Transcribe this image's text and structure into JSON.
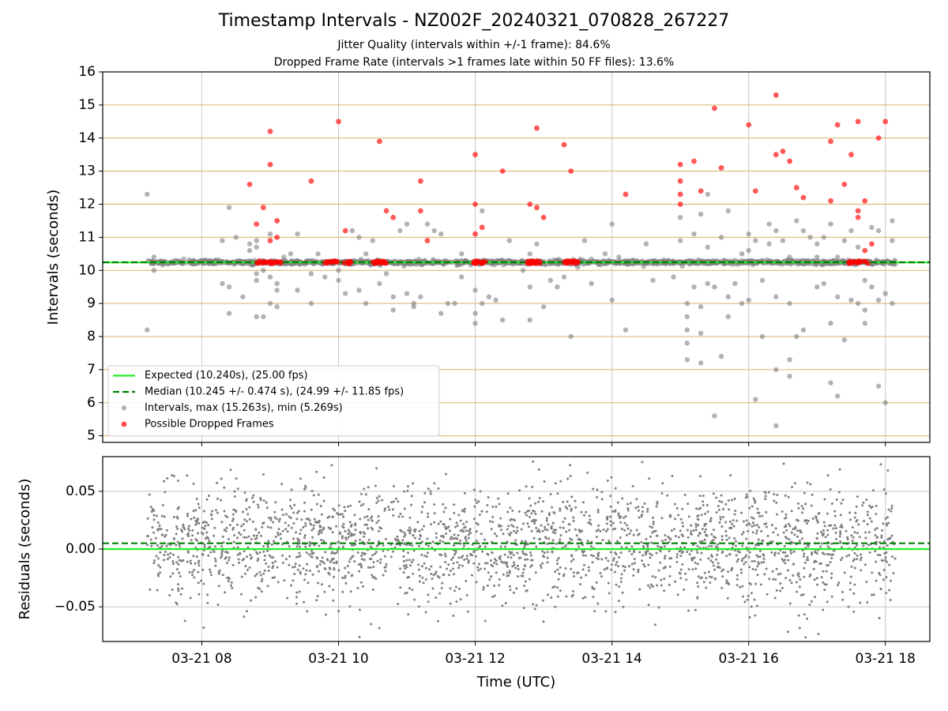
{
  "title": "Timestamp Intervals - NZ002F_20240321_070828_267227",
  "subtitles": [
    "Jitter Quality (intervals within +/-1 frame): 84.6%",
    "Dropped Frame Rate (intervals >1 frames late within 50 FF files): 13.6%"
  ],
  "colors": {
    "expected": "#22ee22",
    "median": "#008000",
    "intervals": "#808080",
    "dropped": "#ff0000",
    "hgrid_top": "#d4b36a",
    "grid": "#c8c8c8"
  },
  "chart_data": [
    {
      "type": "scatter",
      "ylabel": "Intervals (seconds)",
      "ylim": [
        4.8,
        16
      ],
      "yticks": [
        5,
        6,
        7,
        8,
        9,
        10,
        11,
        12,
        13,
        14,
        15,
        16
      ],
      "xlim_hours": [
        6.55,
        18.65
      ],
      "expected": 10.24,
      "median": 10.245,
      "grid": true,
      "legend_placement": "lower-left",
      "legend": [
        "Expected (10.240s), (25.00 fps)",
        "Median (10.245 +/- 0.474 s), (24.99 +/- 11.85 fps)",
        "Intervals, max (15.263s), min (5.269s)",
        "Possible Dropped Frames"
      ],
      "series": [
        {
          "name": "Intervals, max (15.263s), min (5.269s)",
          "points": [
            [
              7.2,
              12.3
            ],
            [
              7.2,
              8.2
            ],
            [
              7.3,
              10.0
            ],
            [
              7.3,
              10.4
            ],
            [
              8.3,
              10.9
            ],
            [
              8.3,
              9.6
            ],
            [
              8.4,
              11.9
            ],
            [
              8.4,
              9.5
            ],
            [
              8.4,
              8.7
            ],
            [
              8.5,
              11.0
            ],
            [
              8.6,
              9.2
            ],
            [
              8.6,
              10.2
            ],
            [
              8.7,
              10.6
            ],
            [
              8.7,
              10.8
            ],
            [
              8.8,
              9.7
            ],
            [
              8.8,
              9.9
            ],
            [
              8.8,
              10.7
            ],
            [
              8.8,
              10.9
            ],
            [
              8.9,
              8.6
            ],
            [
              8.9,
              10.0
            ],
            [
              8.9,
              10.3
            ],
            [
              9.0,
              9.0
            ],
            [
              9.0,
              9.8
            ],
            [
              9.0,
              11.1
            ],
            [
              9.1,
              9.6
            ],
            [
              9.1,
              9.4
            ],
            [
              9.2,
              10.4
            ],
            [
              9.3,
              10.5
            ],
            [
              9.4,
              11.1
            ],
            [
              9.4,
              9.4
            ],
            [
              9.6,
              9.9
            ],
            [
              9.6,
              9.0
            ],
            [
              9.7,
              10.5
            ],
            [
              9.8,
              9.8
            ],
            [
              10.0,
              10.0
            ],
            [
              10.0,
              9.7
            ],
            [
              10.1,
              9.3
            ],
            [
              10.2,
              11.2
            ],
            [
              10.3,
              11.0
            ],
            [
              10.3,
              9.4
            ],
            [
              10.4,
              9.0
            ],
            [
              10.5,
              10.9
            ],
            [
              10.6,
              10.3
            ],
            [
              10.6,
              9.6
            ],
            [
              10.7,
              9.9
            ],
            [
              10.8,
              8.8
            ],
            [
              10.8,
              9.2
            ],
            [
              10.9,
              11.2
            ],
            [
              11.0,
              11.4
            ],
            [
              11.0,
              9.3
            ],
            [
              11.1,
              9.0
            ],
            [
              11.1,
              8.9
            ],
            [
              11.2,
              9.2
            ],
            [
              11.3,
              11.4
            ],
            [
              11.4,
              11.2
            ],
            [
              11.5,
              8.7
            ],
            [
              11.5,
              11.1
            ],
            [
              11.7,
              9.0
            ],
            [
              11.8,
              9.8
            ],
            [
              11.8,
              10.5
            ],
            [
              12.0,
              9.4
            ],
            [
              12.0,
              8.7
            ],
            [
              12.0,
              8.4
            ],
            [
              12.1,
              9.0
            ],
            [
              12.1,
              11.8
            ],
            [
              12.2,
              9.2
            ],
            [
              12.3,
              9.1
            ],
            [
              12.4,
              8.5
            ],
            [
              12.5,
              10.9
            ],
            [
              12.7,
              10.0
            ],
            [
              12.8,
              9.5
            ],
            [
              12.8,
              8.5
            ],
            [
              12.9,
              10.8
            ],
            [
              13.0,
              8.9
            ],
            [
              13.1,
              9.7
            ],
            [
              13.3,
              9.8
            ],
            [
              13.4,
              8.0
            ],
            [
              13.5,
              10.1
            ],
            [
              13.6,
              10.9
            ],
            [
              13.7,
              9.6
            ],
            [
              13.9,
              10.5
            ],
            [
              14.0,
              11.4
            ],
            [
              14.0,
              9.1
            ],
            [
              14.2,
              8.2
            ],
            [
              14.3,
              10.3
            ],
            [
              14.5,
              10.8
            ],
            [
              14.6,
              9.7
            ],
            [
              14.9,
              9.8
            ],
            [
              15.0,
              10.9
            ],
            [
              15.0,
              11.6
            ],
            [
              15.1,
              9.0
            ],
            [
              15.1,
              8.6
            ],
            [
              15.1,
              8.2
            ],
            [
              15.1,
              7.8
            ],
            [
              15.1,
              7.3
            ],
            [
              15.2,
              9.5
            ],
            [
              15.2,
              11.1
            ],
            [
              15.3,
              11.7
            ],
            [
              15.3,
              8.9
            ],
            [
              15.3,
              8.1
            ],
            [
              15.4,
              9.6
            ],
            [
              15.4,
              12.3
            ],
            [
              15.4,
              10.7
            ],
            [
              15.5,
              9.5
            ],
            [
              15.6,
              11.0
            ],
            [
              15.6,
              7.4
            ],
            [
              15.7,
              11.8
            ],
            [
              15.7,
              9.2
            ],
            [
              15.7,
              8.6
            ],
            [
              15.8,
              9.6
            ],
            [
              15.9,
              9.0
            ],
            [
              15.9,
              10.5
            ],
            [
              16.0,
              10.6
            ],
            [
              16.0,
              11.1
            ],
            [
              16.0,
              9.1
            ],
            [
              16.1,
              6.1
            ],
            [
              16.1,
              10.9
            ],
            [
              16.2,
              8.0
            ],
            [
              16.2,
              9.7
            ],
            [
              16.3,
              11.4
            ],
            [
              16.3,
              10.8
            ],
            [
              16.4,
              9.2
            ],
            [
              16.4,
              11.2
            ],
            [
              16.4,
              7.0
            ],
            [
              16.5,
              10.9
            ],
            [
              16.6,
              10.4
            ],
            [
              16.6,
              6.8
            ],
            [
              16.6,
              9.0
            ],
            [
              16.7,
              8.0
            ],
            [
              16.7,
              11.5
            ],
            [
              16.8,
              11.2
            ],
            [
              16.8,
              8.2
            ],
            [
              16.9,
              11.0
            ],
            [
              17.0,
              9.5
            ],
            [
              17.0,
              10.8
            ],
            [
              17.1,
              9.6
            ],
            [
              17.1,
              11.0
            ],
            [
              17.2,
              6.6
            ],
            [
              17.2,
              11.4
            ],
            [
              17.2,
              8.4
            ],
            [
              17.3,
              6.2
            ],
            [
              17.3,
              9.2
            ],
            [
              17.4,
              10.9
            ],
            [
              17.4,
              7.9
            ],
            [
              17.5,
              9.1
            ],
            [
              17.5,
              11.2
            ],
            [
              17.6,
              10.7
            ],
            [
              17.6,
              9.0
            ],
            [
              17.7,
              8.8
            ],
            [
              17.7,
              8.4
            ],
            [
              17.7,
              9.7
            ],
            [
              17.8,
              11.3
            ],
            [
              17.8,
              9.5
            ],
            [
              17.9,
              6.5
            ],
            [
              17.9,
              9.1
            ],
            [
              17.9,
              11.2
            ],
            [
              18.0,
              6.0
            ],
            [
              18.0,
              9.3
            ],
            [
              18.1,
              11.5
            ],
            [
              18.1,
              9.0
            ],
            [
              18.1,
              10.9
            ],
            [
              15.5,
              5.6
            ],
            [
              16.4,
              5.3
            ],
            [
              15.3,
              7.2
            ],
            [
              16.6,
              7.3
            ],
            [
              9.1,
              8.9
            ],
            [
              8.8,
              8.6
            ],
            [
              12.8,
              10.5
            ],
            [
              14.1,
              10.4
            ],
            [
              10.4,
              10.5
            ],
            [
              11.6,
              9.0
            ],
            [
              13.2,
              9.5
            ],
            [
              17.0,
              10.4
            ],
            [
              16.2,
              10.3
            ],
            [
              15.8,
              10.3
            ],
            [
              17.3,
              10.4
            ]
          ]
        },
        {
          "name": "Possible Dropped Frames",
          "points": [
            [
              8.7,
              12.6
            ],
            [
              8.8,
              11.4
            ],
            [
              8.9,
              11.9
            ],
            [
              9.0,
              13.2
            ],
            [
              9.0,
              14.2
            ],
            [
              9.1,
              11.5
            ],
            [
              9.1,
              11.0
            ],
            [
              9.0,
              10.9
            ],
            [
              9.6,
              12.7
            ],
            [
              10.0,
              14.5
            ],
            [
              10.1,
              11.2
            ],
            [
              10.6,
              13.9
            ],
            [
              10.7,
              11.8
            ],
            [
              10.8,
              11.6
            ],
            [
              11.2,
              12.7
            ],
            [
              11.2,
              11.8
            ],
            [
              11.3,
              10.9
            ],
            [
              12.0,
              13.5
            ],
            [
              12.0,
              12.0
            ],
            [
              12.0,
              11.1
            ],
            [
              12.1,
              11.3
            ],
            [
              12.4,
              13.0
            ],
            [
              12.8,
              12.0
            ],
            [
              12.9,
              14.3
            ],
            [
              12.9,
              11.9
            ],
            [
              13.0,
              11.6
            ],
            [
              13.3,
              13.8
            ],
            [
              13.4,
              13.0
            ],
            [
              14.2,
              12.3
            ],
            [
              15.0,
              13.2
            ],
            [
              15.0,
              12.7
            ],
            [
              15.0,
              12.3
            ],
            [
              15.0,
              12.0
            ],
            [
              15.2,
              13.3
            ],
            [
              15.3,
              12.4
            ],
            [
              15.5,
              14.9
            ],
            [
              15.6,
              13.1
            ],
            [
              16.0,
              14.4
            ],
            [
              16.1,
              12.4
            ],
            [
              16.4,
              15.3
            ],
            [
              16.4,
              13.5
            ],
            [
              16.5,
              13.6
            ],
            [
              16.6,
              13.3
            ],
            [
              16.7,
              12.5
            ],
            [
              16.8,
              12.2
            ],
            [
              17.2,
              13.9
            ],
            [
              17.2,
              12.1
            ],
            [
              17.3,
              14.4
            ],
            [
              17.4,
              12.6
            ],
            [
              17.5,
              13.5
            ],
            [
              17.6,
              11.6
            ],
            [
              17.6,
              11.8
            ],
            [
              17.7,
              12.1
            ],
            [
              17.6,
              14.5
            ],
            [
              17.8,
              10.8
            ],
            [
              17.7,
              10.6
            ],
            [
              17.9,
              14.0
            ],
            [
              18.0,
              14.5
            ]
          ],
          "clusters_at_expected": [
            [
              8.8,
              9.2
            ],
            [
              9.8,
              10.2
            ],
            [
              10.5,
              10.7
            ],
            [
              11.95,
              12.15
            ],
            [
              12.75,
              12.95
            ],
            [
              13.3,
              13.5
            ],
            [
              17.45,
              17.75
            ]
          ]
        }
      ]
    },
    {
      "type": "scatter",
      "xlabel": "Time (UTC)",
      "ylabel": "Residuals (seconds)",
      "ylim": [
        -0.08,
        0.08
      ],
      "yticks": [
        -0.05,
        0.0,
        0.05
      ],
      "ytick_labels": [
        "−0.05",
        "0.00",
        "0.05"
      ],
      "xlim_hours": [
        6.55,
        18.65
      ],
      "xticks_hours": [
        8,
        10,
        12,
        14,
        16,
        18
      ],
      "xtick_labels": [
        "03-21 08",
        "03-21 10",
        "03-21 12",
        "03-21 14",
        "03-21 16",
        "03-21 18"
      ],
      "expected_residual": 0.0,
      "median_residual": 0.005,
      "residual_point_count": 2400,
      "residual_std": 0.025,
      "residual_center": 0.004,
      "time_span_hours": [
        7.2,
        18.15
      ],
      "grid": true
    }
  ]
}
